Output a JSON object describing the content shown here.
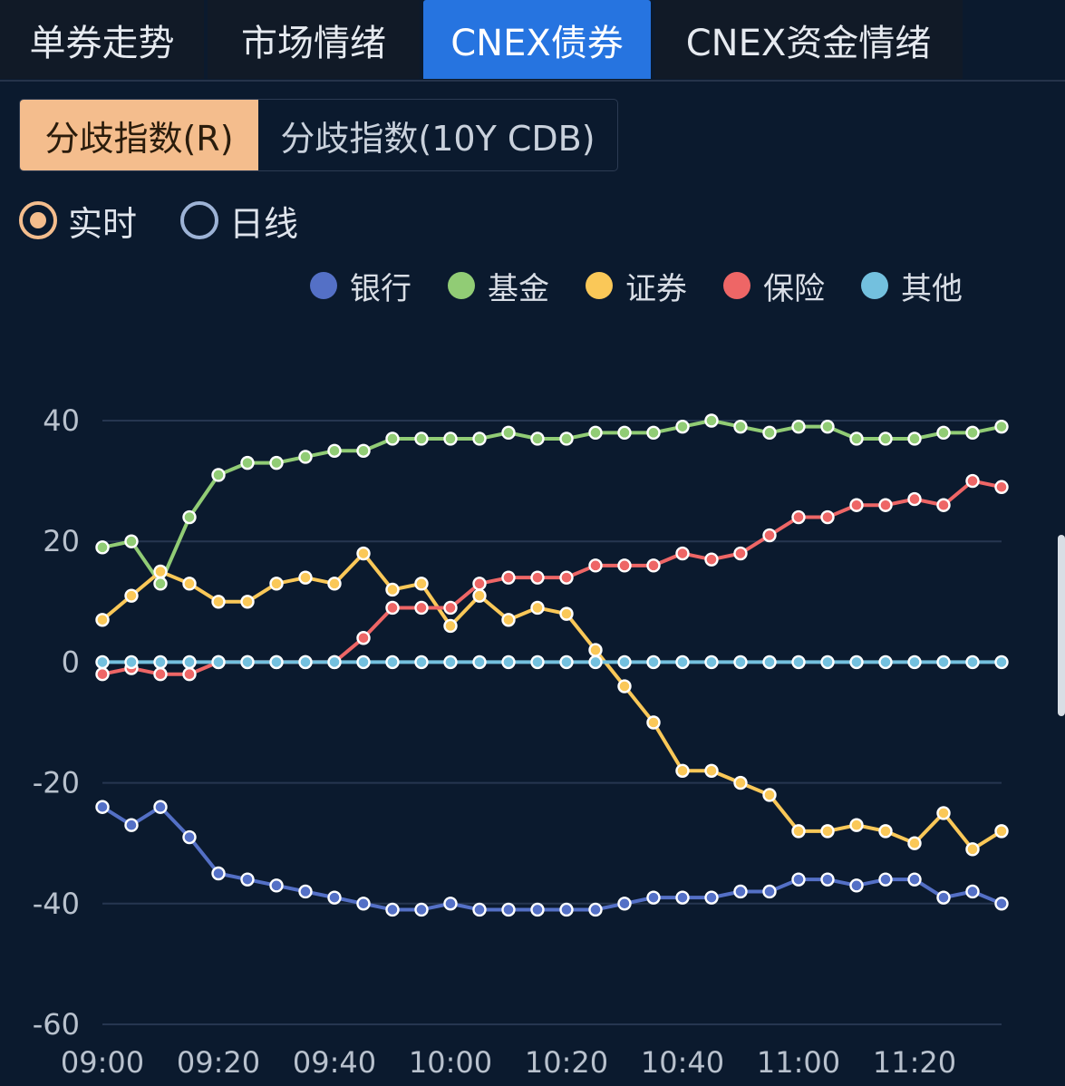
{
  "tabs": [
    {
      "label": "单券走势",
      "active": false
    },
    {
      "label": "市场情绪",
      "active": false
    },
    {
      "label": "CNEX债券",
      "active": true
    },
    {
      "label": "CNEX资金情绪",
      "active": false
    }
  ],
  "segment": {
    "options": [
      "分歧指数(R)",
      "分歧指数(10Y CDB)"
    ],
    "selected": "分歧指数(R)"
  },
  "mode": {
    "options": [
      "实时",
      "日线"
    ],
    "selected": "实时"
  },
  "colors": {
    "accent": "#f4bd8d",
    "active_tab": "#2674e0",
    "background": "#0b1a2e"
  },
  "chart_data": {
    "type": "line",
    "xlabel": "",
    "ylabel": "",
    "ylim": [
      -60,
      40
    ],
    "yticks": [
      40,
      20,
      0,
      -20,
      -40,
      -60
    ],
    "xtick_labels": [
      "09:00",
      "09:20",
      "09:40",
      "10:00",
      "10:20",
      "10:40",
      "11:00",
      "11:20"
    ],
    "x": [
      "09:00",
      "09:05",
      "09:10",
      "09:15",
      "09:20",
      "09:25",
      "09:30",
      "09:35",
      "09:40",
      "09:45",
      "09:50",
      "09:55",
      "10:00",
      "10:05",
      "10:10",
      "10:15",
      "10:20",
      "10:25",
      "10:30",
      "10:35",
      "10:40",
      "10:45",
      "10:50",
      "10:55",
      "11:00",
      "11:05",
      "11:10",
      "11:15",
      "11:20",
      "11:25",
      "11:30",
      "11:35"
    ],
    "grid": true,
    "legend_position": "top",
    "series": [
      {
        "name": "银行",
        "color": "#5470c6",
        "values": [
          -24,
          -27,
          -24,
          -29,
          -35,
          -36,
          -37,
          -38,
          -39,
          -40,
          -41,
          -41,
          -40,
          -41,
          -41,
          -41,
          -41,
          -41,
          -40,
          -39,
          -39,
          -39,
          -38,
          -38,
          -36,
          -36,
          -37,
          -36,
          -36,
          -39,
          -38,
          -40
        ]
      },
      {
        "name": "基金",
        "color": "#91cc75",
        "values": [
          19,
          20,
          13,
          24,
          31,
          33,
          33,
          34,
          35,
          35,
          37,
          37,
          37,
          37,
          38,
          37,
          37,
          38,
          38,
          38,
          39,
          40,
          39,
          38,
          39,
          39,
          37,
          37,
          37,
          38,
          38,
          39
        ]
      },
      {
        "name": "证券",
        "color": "#fac858",
        "values": [
          7,
          11,
          15,
          13,
          10,
          10,
          13,
          14,
          13,
          18,
          12,
          13,
          6,
          11,
          7,
          9,
          8,
          2,
          -4,
          -10,
          -18,
          -18,
          -20,
          -22,
          -28,
          -28,
          -27,
          -28,
          -30,
          -25,
          -31,
          -28
        ]
      },
      {
        "name": "保险",
        "color": "#ee6666",
        "values": [
          -2,
          -1,
          -2,
          -2,
          0,
          0,
          0,
          0,
          0,
          4,
          9,
          9,
          9,
          13,
          14,
          14,
          14,
          16,
          16,
          16,
          18,
          17,
          18,
          21,
          24,
          24,
          26,
          26,
          27,
          26,
          30,
          29
        ]
      },
      {
        "name": "其他",
        "color": "#73c0de",
        "values": [
          0,
          0,
          0,
          0,
          0,
          0,
          0,
          0,
          0,
          0,
          0,
          0,
          0,
          0,
          0,
          0,
          0,
          0,
          0,
          0,
          0,
          0,
          0,
          0,
          0,
          0,
          0,
          0,
          0,
          0,
          0,
          0
        ]
      }
    ]
  }
}
